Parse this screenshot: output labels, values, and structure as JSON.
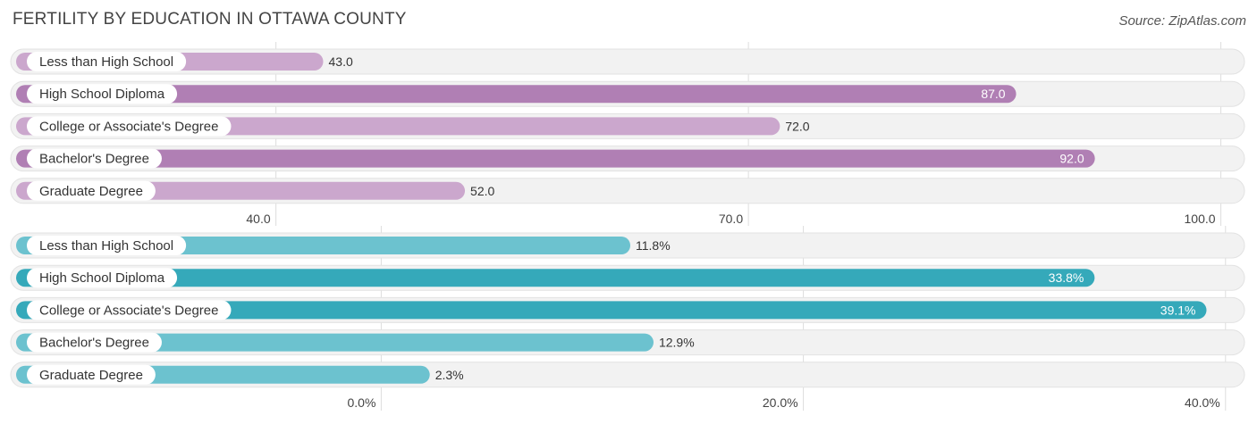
{
  "title": "FERTILITY BY EDUCATION IN OTTAWA COUNTY",
  "source": "Source: ZipAtlas.com",
  "chart_data": [
    {
      "type": "bar",
      "orientation": "horizontal",
      "categories": [
        "Less than High School",
        "High School Diploma",
        "College or Associate's Degree",
        "Bachelor's Degree",
        "Graduate Degree"
      ],
      "values": [
        43.0,
        87.0,
        72.0,
        92.0,
        52.0
      ],
      "value_labels": [
        "43.0",
        "87.0",
        "72.0",
        "92.0",
        "52.0"
      ],
      "xlim": [
        23.5,
        101.5
      ],
      "ticks": [
        40.0,
        70.0,
        100.0
      ],
      "tick_labels": [
        "40.0",
        "70.0",
        "100.0"
      ],
      "colors": {
        "light": "#cba7cd",
        "dark": "#b07fb4"
      },
      "grid": true
    },
    {
      "type": "bar",
      "orientation": "horizontal",
      "categories": [
        "Less than High School",
        "High School Diploma",
        "College or Associate's Degree",
        "Bachelor's Degree",
        "Graduate Degree"
      ],
      "values": [
        11.8,
        33.8,
        39.1,
        12.9,
        2.3
      ],
      "value_labels": [
        "11.8%",
        "33.8%",
        "39.1%",
        "12.9%",
        "2.3%"
      ],
      "xlim": [
        -17.3,
        40.9
      ],
      "ticks": [
        0.0,
        20.0,
        40.0
      ],
      "tick_labels": [
        "0.0%",
        "20.0%",
        "40.0%"
      ],
      "colors": {
        "light": "#6cc2cf",
        "dark": "#35a9ba"
      },
      "grid": true
    }
  ]
}
